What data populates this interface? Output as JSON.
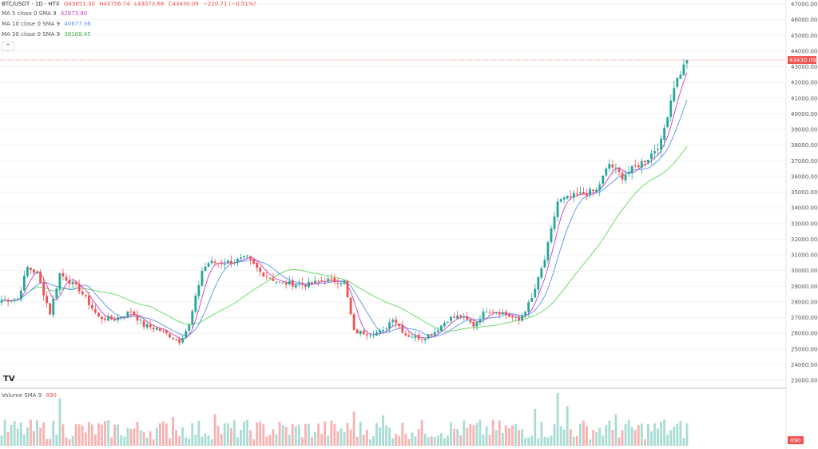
{
  "header": {
    "symbol": "BTC/USDT · 1D · HTX",
    "open": "O43651.30",
    "high": "H43756.74",
    "low": "L43073.68",
    "close": "C43430.09",
    "change": "−220.71 (−0.51%)"
  },
  "indicators": {
    "ma5_label": "MA 5 close 0 SMA 9",
    "ma5_value": "42873.80",
    "ma10_label": "MA 10 close 0 SMA 9",
    "ma10_value": "40677.36",
    "ma30_label": "MA 30 close 0 SMA 9",
    "ma30_value": "38168.45",
    "collapse_glyph": "^"
  },
  "volume_pane": {
    "label": "Volume SMA 9",
    "value": "890"
  },
  "logo_text": "TV",
  "chart_data": {
    "type": "candlestick",
    "y_ticks": [
      "47000.00",
      "46000.00",
      "45000.00",
      "44000.00",
      "43000.00",
      "42000.00",
      "41000.00",
      "40000.00",
      "39000.00",
      "38000.00",
      "37000.00",
      "36000.00",
      "35000.00",
      "34000.00",
      "33000.00",
      "32000.00",
      "31000.00",
      "30000.00",
      "29000.00",
      "28000.00",
      "27000.00",
      "26000.00",
      "25000.00",
      "24000.00",
      "23000.00"
    ],
    "ylim": [
      23000,
      47000
    ],
    "last_price_label": "43430.09",
    "last_price": 43430.09,
    "volume_label": "890",
    "colors": {
      "up": "#26a69a",
      "down": "#ef5350",
      "ma5": "#c93dbf",
      "ma10": "#5b8ff0",
      "ma30": "#5fd85f",
      "last_price_line": "#f28b82",
      "up_volume": "#a8dcd4",
      "down_volume": "#f6b3b1"
    },
    "keypoints": [
      {
        "i": 0,
        "p": 28100
      },
      {
        "i": 5,
        "p": 28200
      },
      {
        "i": 8,
        "p": 30200
      },
      {
        "i": 11,
        "p": 29800
      },
      {
        "i": 15,
        "p": 27300
      },
      {
        "i": 18,
        "p": 29800
      },
      {
        "i": 24,
        "p": 28800
      },
      {
        "i": 30,
        "p": 27000
      },
      {
        "i": 35,
        "p": 26900
      },
      {
        "i": 40,
        "p": 27400
      },
      {
        "i": 44,
        "p": 26500
      },
      {
        "i": 48,
        "p": 26300
      },
      {
        "i": 55,
        "p": 25500
      },
      {
        "i": 58,
        "p": 26500
      },
      {
        "i": 62,
        "p": 30000
      },
      {
        "i": 64,
        "p": 30500
      },
      {
        "i": 68,
        "p": 30500
      },
      {
        "i": 72,
        "p": 30600
      },
      {
        "i": 76,
        "p": 30800
      },
      {
        "i": 80,
        "p": 29900
      },
      {
        "i": 86,
        "p": 29200
      },
      {
        "i": 95,
        "p": 29100
      },
      {
        "i": 100,
        "p": 29400
      },
      {
        "i": 106,
        "p": 29300
      },
      {
        "i": 109,
        "p": 26100
      },
      {
        "i": 114,
        "p": 26000
      },
      {
        "i": 118,
        "p": 26100
      },
      {
        "i": 121,
        "p": 27000
      },
      {
        "i": 125,
        "p": 25900
      },
      {
        "i": 130,
        "p": 25700
      },
      {
        "i": 134,
        "p": 26100
      },
      {
        "i": 138,
        "p": 26900
      },
      {
        "i": 142,
        "p": 27100
      },
      {
        "i": 146,
        "p": 26500
      },
      {
        "i": 150,
        "p": 27500
      },
      {
        "i": 155,
        "p": 27300
      },
      {
        "i": 160,
        "p": 26800
      },
      {
        "i": 164,
        "p": 28200
      },
      {
        "i": 168,
        "p": 30700
      },
      {
        "i": 172,
        "p": 34400
      },
      {
        "i": 178,
        "p": 34800
      },
      {
        "i": 184,
        "p": 35100
      },
      {
        "i": 188,
        "p": 36800
      },
      {
        "i": 192,
        "p": 36000
      },
      {
        "i": 196,
        "p": 36600
      },
      {
        "i": 200,
        "p": 37200
      },
      {
        "i": 204,
        "p": 38200
      },
      {
        "i": 208,
        "p": 41800
      },
      {
        "i": 212,
        "p": 43430
      }
    ],
    "candle_count": 213,
    "volume_spikes": [
      {
        "i": 18,
        "v": 0.9
      },
      {
        "i": 53,
        "v": 0.55
      },
      {
        "i": 66,
        "v": 0.6
      },
      {
        "i": 109,
        "v": 0.65
      },
      {
        "i": 118,
        "v": 0.58
      },
      {
        "i": 165,
        "v": 0.7
      },
      {
        "i": 172,
        "v": 1.0
      },
      {
        "i": 175,
        "v": 0.75
      },
      {
        "i": 190,
        "v": 0.6
      },
      {
        "i": 205,
        "v": 0.5
      }
    ]
  }
}
